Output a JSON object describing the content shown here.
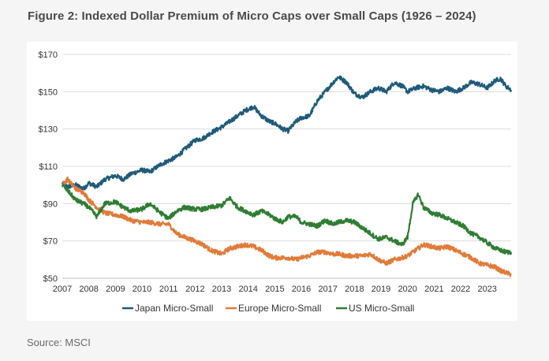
{
  "figure": {
    "title": "Figure 2: Indexed Dollar Premium of Micro Caps over Small Caps (1926 – 2024)",
    "source": "Source: MSCI"
  },
  "colors": {
    "japan": "#1f5a7a",
    "europe": "#e07b39",
    "us": "#2e7d32",
    "grid": "#dcdcdc",
    "axis": "#bdbdbd"
  },
  "chart_data": {
    "type": "line",
    "title": "Figure 2: Indexed Dollar Premium of Micro Caps over Small Caps (1926 – 2024)",
    "xlabel": "",
    "ylabel": "",
    "xlim": [
      2007,
      2023.9
    ],
    "ylim": [
      50,
      170
    ],
    "grid": true,
    "legend": "bottom",
    "y_ticks": [
      50,
      70,
      90,
      110,
      130,
      150,
      170
    ],
    "y_tick_labels": [
      "$50",
      "$70",
      "$90",
      "$110",
      "$130",
      "$150",
      "$170"
    ],
    "x_ticks": [
      2007,
      2008,
      2009,
      2010,
      2011,
      2012,
      2013,
      2014,
      2015,
      2016,
      2017,
      2018,
      2019,
      2020,
      2021,
      2022,
      2023
    ],
    "x_tick_labels": [
      "2007",
      "2008",
      "2009",
      "2010",
      "2011",
      "2012",
      "2013",
      "2014",
      "2015",
      "2016",
      "2017",
      "2018",
      "2019",
      "2020",
      "2021",
      "2022",
      "2023"
    ],
    "series": [
      {
        "name": "Japan Micro-Small",
        "x": [
          2007.0,
          2007.2,
          2007.5,
          2007.8,
          2008.0,
          2008.3,
          2008.6,
          2009.0,
          2009.3,
          2009.6,
          2010.0,
          2010.3,
          2010.7,
          2011.0,
          2011.3,
          2011.6,
          2012.0,
          2012.3,
          2012.6,
          2013.0,
          2013.3,
          2013.6,
          2013.9,
          2014.2,
          2014.5,
          2014.8,
          2015.0,
          2015.3,
          2015.5,
          2015.8,
          2016.0,
          2016.3,
          2016.6,
          2016.9,
          2017.2,
          2017.4,
          2017.7,
          2018.0,
          2018.3,
          2018.6,
          2018.9,
          2019.2,
          2019.5,
          2019.8,
          2020.0,
          2020.3,
          2020.6,
          2020.9,
          2021.2,
          2021.5,
          2021.8,
          2022.1,
          2022.4,
          2022.7,
          2023.0,
          2023.3,
          2023.5,
          2023.7,
          2023.9
        ],
        "y": [
          101,
          99,
          100,
          98,
          101,
          99,
          103,
          105,
          103,
          106,
          108,
          107,
          111,
          113,
          115,
          119,
          124,
          125,
          128,
          131,
          134,
          137,
          140,
          142,
          137,
          134,
          133,
          130,
          129,
          134,
          136,
          137,
          145,
          150,
          155,
          158,
          155,
          149,
          147,
          150,
          152,
          150,
          155,
          153,
          150,
          152,
          153,
          151,
          150,
          152,
          150,
          152,
          155,
          154,
          152,
          156,
          157,
          153,
          151
        ]
      },
      {
        "name": "Europe Micro-Small",
        "x": [
          2007.0,
          2007.2,
          2007.5,
          2007.8,
          2008.0,
          2008.3,
          2008.6,
          2009.0,
          2009.3,
          2009.6,
          2010.0,
          2010.3,
          2010.7,
          2011.0,
          2011.3,
          2011.6,
          2012.0,
          2012.3,
          2012.6,
          2013.0,
          2013.3,
          2013.6,
          2013.9,
          2014.2,
          2014.5,
          2014.8,
          2015.0,
          2015.3,
          2015.5,
          2015.8,
          2016.0,
          2016.3,
          2016.6,
          2016.9,
          2017.2,
          2017.4,
          2017.7,
          2018.0,
          2018.3,
          2018.6,
          2018.9,
          2019.2,
          2019.5,
          2019.8,
          2020.0,
          2020.3,
          2020.6,
          2020.9,
          2021.2,
          2021.5,
          2021.8,
          2022.1,
          2022.4,
          2022.7,
          2023.0,
          2023.3,
          2023.5,
          2023.7,
          2023.9
        ],
        "y": [
          100,
          103,
          98,
          96,
          92,
          88,
          85,
          84,
          83,
          81,
          80,
          80,
          79,
          79,
          74,
          72,
          70,
          68,
          65,
          63,
          66,
          67,
          68,
          67,
          65,
          62,
          61,
          61,
          61,
          60,
          61,
          62,
          64,
          64,
          63,
          63,
          62,
          62,
          62,
          63,
          60,
          58,
          60,
          61,
          62,
          65,
          68,
          67,
          66,
          67,
          65,
          63,
          61,
          58,
          57,
          56,
          54,
          53,
          52
        ]
      },
      {
        "name": "US Micro-Small",
        "x": [
          2007.0,
          2007.2,
          2007.5,
          2007.8,
          2008.0,
          2008.3,
          2008.6,
          2009.0,
          2009.3,
          2009.6,
          2010.0,
          2010.3,
          2010.7,
          2011.0,
          2011.3,
          2011.6,
          2012.0,
          2012.3,
          2012.6,
          2013.0,
          2013.3,
          2013.6,
          2013.9,
          2014.2,
          2014.5,
          2014.8,
          2015.0,
          2015.3,
          2015.5,
          2015.8,
          2016.0,
          2016.3,
          2016.6,
          2016.9,
          2017.2,
          2017.4,
          2017.7,
          2018.0,
          2018.3,
          2018.6,
          2018.9,
          2019.2,
          2019.5,
          2019.8,
          2020.0,
          2020.2,
          2020.4,
          2020.6,
          2020.9,
          2021.2,
          2021.5,
          2021.8,
          2022.1,
          2022.4,
          2022.7,
          2023.0,
          2023.3,
          2023.5,
          2023.7,
          2023.9
        ],
        "y": [
          100,
          97,
          92,
          90,
          88,
          83,
          90,
          91,
          88,
          86,
          87,
          90,
          85,
          82,
          86,
          88,
          87,
          87,
          88,
          89,
          93,
          88,
          86,
          84,
          86,
          84,
          82,
          80,
          83,
          83,
          80,
          79,
          78,
          81,
          79,
          80,
          81,
          80,
          77,
          74,
          71,
          72,
          70,
          68,
          72,
          90,
          95,
          88,
          85,
          84,
          82,
          80,
          78,
          74,
          72,
          69,
          66,
          65,
          64,
          64
        ]
      }
    ]
  }
}
